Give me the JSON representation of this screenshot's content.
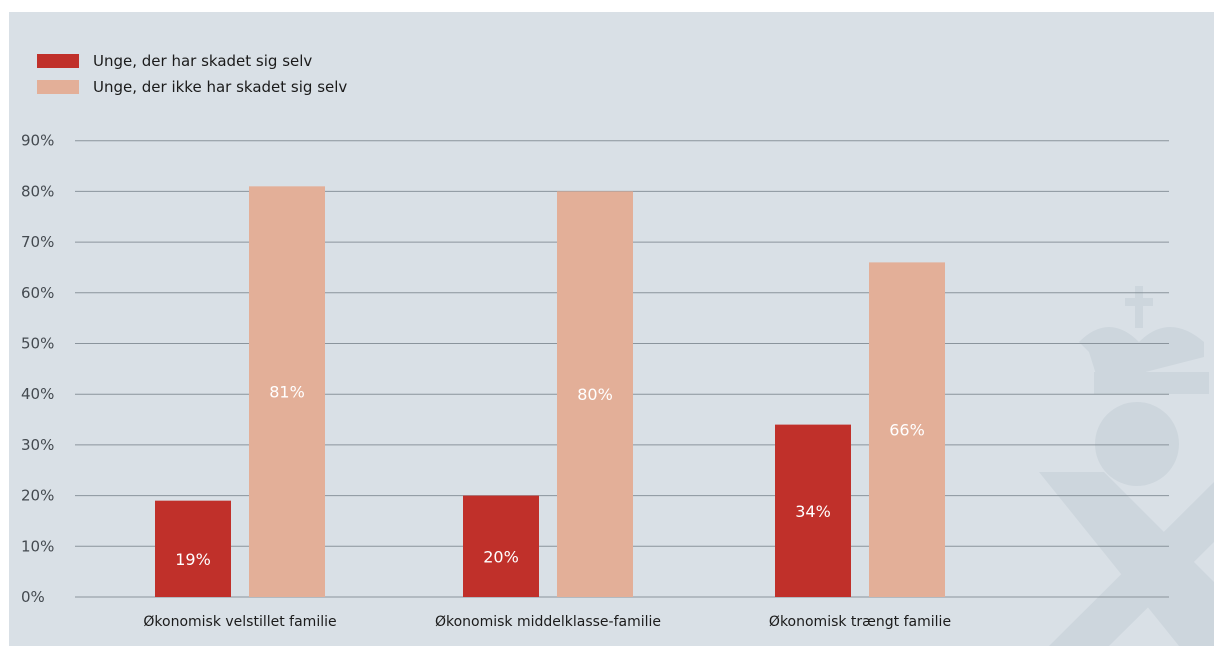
{
  "colors": {
    "background": "#d9e0e6",
    "series1": "#c0302a",
    "series2": "#e3af98",
    "grid": "#8a949c",
    "watermark": "#cdd6dd"
  },
  "chart_data": {
    "type": "bar",
    "categories": [
      "Økonomisk velstillet familie",
      "Økonomisk middelklasse-familie",
      "Økonomisk trængt familie"
    ],
    "series": [
      {
        "name": "Unge, der har skadet sig selv",
        "values": [
          19,
          20,
          34
        ],
        "labels": [
          "19%",
          "20%",
          "34%"
        ]
      },
      {
        "name": "Unge, der ikke har skadet sig selv",
        "values": [
          81,
          80,
          66
        ],
        "labels": [
          "81%",
          "80%",
          "66%"
        ]
      }
    ],
    "yticks": [
      "0%",
      "10%",
      "20%",
      "30%",
      "40%",
      "50%",
      "60%",
      "70%",
      "80%",
      "90%"
    ],
    "ylim": [
      0,
      90
    ],
    "legend_position": "top-left",
    "grid": true
  }
}
